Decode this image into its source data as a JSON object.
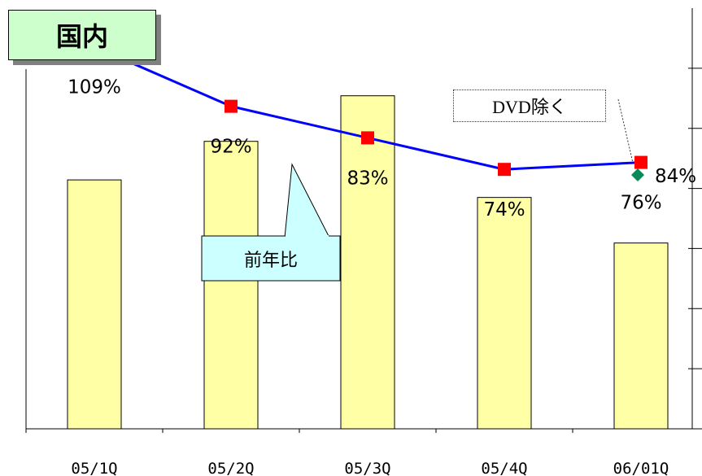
{
  "tag": {
    "label": "国内"
  },
  "callouts": {
    "dvd_excluded": "DVD除く",
    "yoy": "前年比"
  },
  "colors": {
    "bar_fill": "#ffffa6",
    "bar_stroke": "#000000",
    "line": "#0000ff",
    "marker": "#ff0000",
    "alt_marker": "#0a8a5a",
    "tag_fill": "#ccffcc",
    "callout_fill": "#ccffff"
  },
  "chart_data": {
    "type": "bar",
    "categories": [
      "05/1Q",
      "05/2Q",
      "05/3Q",
      "05/4Q",
      "06/01Q"
    ],
    "series": [
      {
        "type": "bar",
        "values": [
          71,
          82,
          95,
          66,
          53
        ]
      },
      {
        "type": "line",
        "values": [
          109,
          92,
          83,
          74,
          76
        ],
        "labels": [
          "109%",
          "92%",
          "83%",
          "74%",
          "76%"
        ]
      }
    ],
    "extra_point": {
      "category": "06/01Q",
      "value": 84,
      "label": "84%",
      "marker": "diamond"
    },
    "ylim": [
      0,
      120
    ],
    "grid": false,
    "legend": "none"
  }
}
